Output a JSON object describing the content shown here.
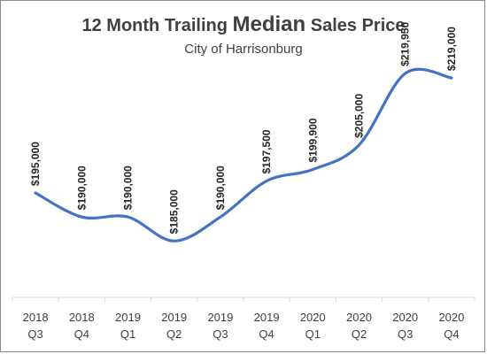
{
  "chart_data": {
    "type": "line",
    "title": {
      "prefix": "12 Month Trailing ",
      "emphasis": "Median",
      "suffix": " Sales Price"
    },
    "subtitle": "City of Harrisonburg",
    "categories": [
      [
        "2018",
        "Q3"
      ],
      [
        "2018",
        "Q4"
      ],
      [
        "2019",
        "Q1"
      ],
      [
        "2019",
        "Q2"
      ],
      [
        "2019",
        "Q3"
      ],
      [
        "2019",
        "Q4"
      ],
      [
        "2020",
        "Q1"
      ],
      [
        "2020",
        "Q2"
      ],
      [
        "2020",
        "Q3"
      ],
      [
        "2020",
        "Q4"
      ]
    ],
    "series": [
      {
        "values": [
          195000,
          190000,
          190000,
          185000,
          190000,
          197500,
          199900,
          205000,
          219950,
          219000
        ],
        "labels": [
          "$195,000",
          "$190,000",
          "$190,000",
          "$185,000",
          "$190,000",
          "$197,500",
          "$199,900",
          "$205,000",
          "$219,950",
          "$219,000"
        ],
        "color": "#4472C4"
      }
    ],
    "xlabel": "",
    "ylabel": "",
    "ylim": [
      176000,
      224000
    ],
    "grid": false,
    "legend": "none",
    "y_axis_visible": false,
    "data_label_orientation": "vertical"
  }
}
